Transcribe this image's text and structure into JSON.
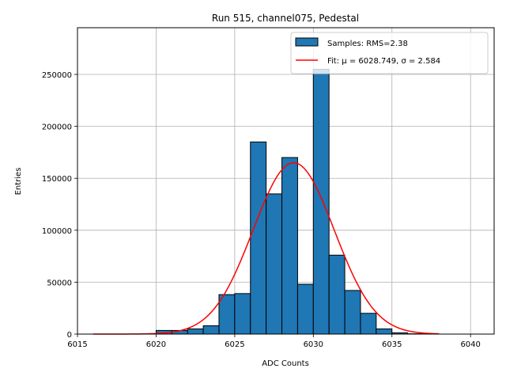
{
  "chart_data": {
    "type": "bar",
    "title": "Run 515, channel075, Pedestal",
    "xlabel": "ADC Counts",
    "ylabel": "Entries",
    "xlim": [
      6015,
      6041.5
    ],
    "ylim": [
      0,
      295000
    ],
    "xticks": [
      6015,
      6020,
      6025,
      6030,
      6035,
      6040
    ],
    "yticks": [
      0,
      50000,
      100000,
      150000,
      200000,
      250000
    ],
    "grid": true,
    "legend_position": "top-right",
    "bin_width": 1,
    "bins": [
      {
        "x": 6020,
        "value": 3500
      },
      {
        "x": 6021,
        "value": 3500
      },
      {
        "x": 6022,
        "value": 5000
      },
      {
        "x": 6023,
        "value": 8000
      },
      {
        "x": 6024,
        "value": 38000
      },
      {
        "x": 6025,
        "value": 39000
      },
      {
        "x": 6026,
        "value": 185000
      },
      {
        "x": 6027,
        "value": 135000
      },
      {
        "x": 6028,
        "value": 170000
      },
      {
        "x": 6029,
        "value": 48000
      },
      {
        "x": 6030,
        "value": 255000
      },
      {
        "x": 6031,
        "value": 76000
      },
      {
        "x": 6032,
        "value": 42000
      },
      {
        "x": 6033,
        "value": 20000
      },
      {
        "x": 6034,
        "value": 5000
      },
      {
        "x": 6035,
        "value": 1200
      },
      {
        "x": 6036,
        "value": 300
      }
    ],
    "fit": {
      "mu": 6028.749,
      "sigma": 2.584,
      "amplitude": 165000,
      "x_range": [
        6016,
        6038
      ]
    },
    "legend": {
      "samples_label": "Samples: RMS=2.38",
      "fit_label_prefix": "Fit: ",
      "fit_mu_text": "μ = 6028.749",
      "fit_sigma_text": "σ = 2.584"
    },
    "colors": {
      "bar_fill": "#1f77b4",
      "bar_edge": "#000000",
      "fit_line": "#ff0000",
      "grid": "#b0b0b0"
    }
  }
}
